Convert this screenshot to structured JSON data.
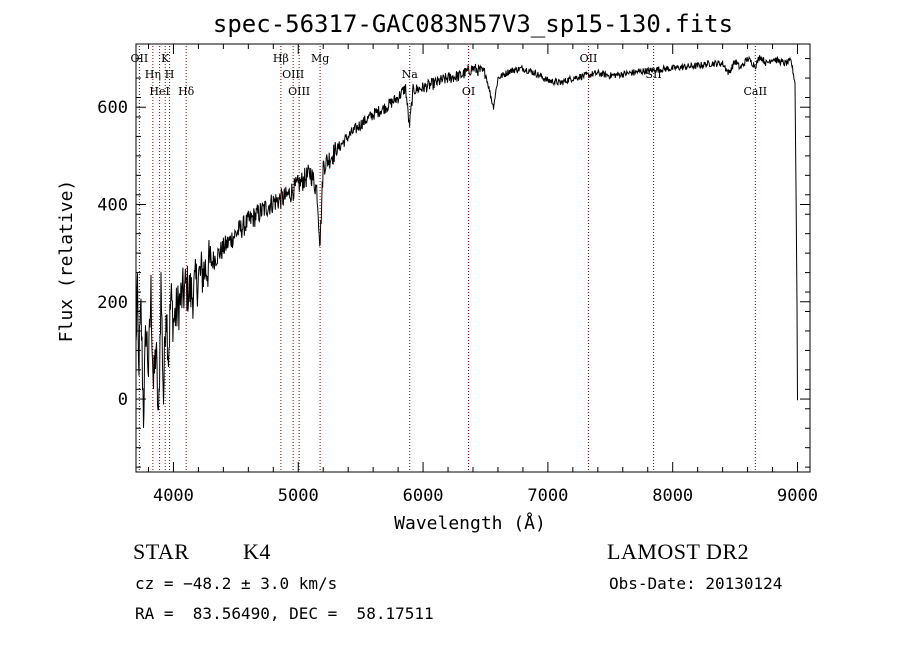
{
  "chart_data": {
    "type": "line",
    "title": "spec-56317-GAC083N57V3_sp15-130.fits",
    "xlabel": "Wavelength (Å)",
    "ylabel": "Flux (relative)",
    "xlim": [
      3700,
      9100
    ],
    "ylim": [
      -150,
      730
    ],
    "x_ticks": [
      4000,
      5000,
      6000,
      7000,
      8000,
      9000
    ],
    "y_ticks": [
      0,
      200,
      400,
      600
    ],
    "x_tick_labels": [
      "4000",
      "5000",
      "6000",
      "7000",
      "8000",
      "9000"
    ],
    "y_tick_labels": [
      "0",
      "200",
      "400",
      "600"
    ],
    "line_color": "#000000",
    "marker_color": "#8b0000",
    "grid": false,
    "series": [
      {
        "x": [
          3700,
          3710,
          3720,
          3740,
          3760,
          3780,
          3800,
          3820,
          3840,
          3860,
          3880,
          3900,
          3920,
          3940,
          3960,
          3980,
          4000,
          4050,
          4100,
          4150,
          4200,
          4300,
          4400,
          4500,
          4600,
          4700,
          4800,
          4900,
          5000,
          5100,
          5150,
          5175,
          5200,
          5300,
          5400,
          5500,
          5600,
          5700,
          5800,
          5860,
          5890,
          5920,
          6000,
          6100,
          6200,
          6300,
          6400,
          6500,
          6563,
          6600,
          6700,
          6800,
          6900,
          7000,
          7100,
          7200,
          7300,
          7400,
          7500,
          7600,
          7700,
          7800,
          7900,
          8000,
          8100,
          8200,
          8300,
          8400,
          8450,
          8500,
          8542,
          8600,
          8662,
          8700,
          8750,
          8800,
          8850,
          8900,
          8950,
          8980,
          8995,
          9000
        ],
        "y": [
          100,
          240,
          60,
          180,
          -30,
          150,
          60,
          220,
          20,
          110,
          -60,
          240,
          0,
          200,
          90,
          210,
          160,
          200,
          230,
          215,
          250,
          280,
          310,
          340,
          365,
          385,
          405,
          415,
          440,
          465,
          430,
          320,
          480,
          510,
          540,
          565,
          585,
          600,
          620,
          640,
          560,
          635,
          640,
          650,
          660,
          665,
          680,
          670,
          600,
          660,
          675,
          680,
          670,
          655,
          650,
          660,
          665,
          670,
          665,
          668,
          672,
          675,
          678,
          680,
          683,
          685,
          690,
          690,
          670,
          695,
          680,
          700,
          685,
          705,
          690,
          700,
          695,
          690,
          695,
          650,
          240,
          0
        ]
      }
    ],
    "annotations": [
      {
        "label": "OII",
        "x": 3727
      },
      {
        "label": "Hη",
        "x": 3835
      },
      {
        "label": "HeI",
        "x": 3889
      },
      {
        "label": "K",
        "x": 3934
      },
      {
        "label": "H",
        "x": 3969
      },
      {
        "label": "Hδ",
        "x": 4102
      },
      {
        "label": "Hβ",
        "x": 4861
      },
      {
        "label": "OIII",
        "x": 4959
      },
      {
        "label": "OIII",
        "x": 5007
      },
      {
        "label": "Mg",
        "x": 5175
      },
      {
        "label": "Na",
        "x": 5893
      },
      {
        "label": "OI",
        "x": 6364
      },
      {
        "label": "OII",
        "x": 7325
      },
      {
        "label": "SII",
        "x": 7847
      },
      {
        "label": "CaII",
        "x": 8662
      }
    ]
  },
  "info": {
    "object_type": "STAR",
    "subclass": "K4",
    "survey": "LAMOST DR2",
    "redshift": "cz = −48.2 ± 3.0 km/s",
    "obs_date": "Obs-Date: 20130124",
    "coords": "RA =  83.56490, DEC =  58.17511"
  }
}
